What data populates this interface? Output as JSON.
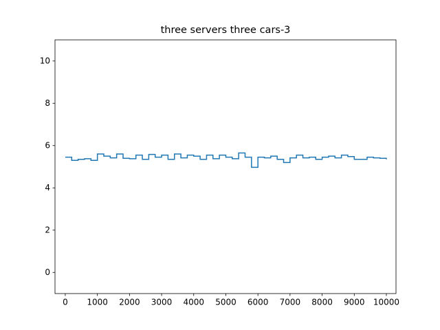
{
  "chart_data": {
    "type": "line",
    "title": "three servers three cars-3",
    "x": [
      0,
      200,
      400,
      600,
      800,
      1000,
      1200,
      1400,
      1600,
      1800,
      2000,
      2200,
      2400,
      2600,
      2800,
      3000,
      3200,
      3400,
      3600,
      3800,
      4000,
      4200,
      4400,
      4600,
      4800,
      5000,
      5200,
      5400,
      5600,
      5800,
      6000,
      6200,
      6400,
      6600,
      6800,
      7000,
      7200,
      7400,
      7600,
      7800,
      8000,
      8200,
      8400,
      8600,
      8800,
      9000,
      9200,
      9400,
      9600,
      9800,
      10000
    ],
    "series": [
      {
        "color": "#1f77b4",
        "values": [
          5.45,
          5.3,
          5.35,
          5.38,
          5.3,
          5.6,
          5.5,
          5.42,
          5.6,
          5.4,
          5.38,
          5.55,
          5.35,
          5.58,
          5.45,
          5.55,
          5.35,
          5.6,
          5.42,
          5.55,
          5.5,
          5.35,
          5.55,
          5.38,
          5.55,
          5.45,
          5.38,
          5.65,
          5.45,
          4.97,
          5.45,
          5.42,
          5.5,
          5.35,
          5.2,
          5.42,
          5.55,
          5.42,
          5.45,
          5.35,
          5.45,
          5.5,
          5.42,
          5.55,
          5.48,
          5.35,
          5.35,
          5.45,
          5.42,
          5.4,
          5.35
        ]
      }
    ],
    "xlim": [
      -320,
      10300
    ],
    "ylim": [
      -1,
      11
    ],
    "xticks": [
      0,
      1000,
      2000,
      3000,
      4000,
      5000,
      6000,
      7000,
      8000,
      9000,
      10000
    ],
    "yticks": [
      0,
      2,
      4,
      6,
      8,
      10
    ]
  }
}
